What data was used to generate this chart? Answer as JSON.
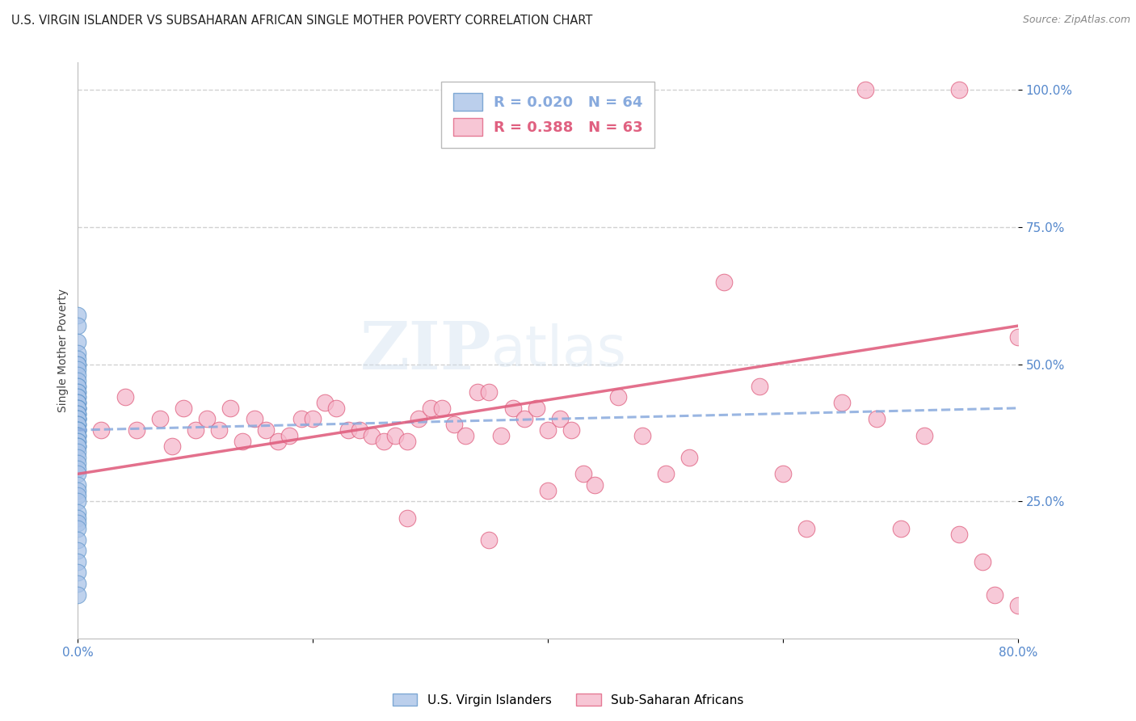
{
  "title": "U.S. VIRGIN ISLANDER VS SUBSAHARAN AFRICAN SINGLE MOTHER POVERTY CORRELATION CHART",
  "source": "Source: ZipAtlas.com",
  "ylabel": "Single Mother Poverty",
  "xlim": [
    0.0,
    0.8
  ],
  "ylim": [
    0.0,
    1.05
  ],
  "ytick_values": [
    0.25,
    0.5,
    0.75,
    1.0
  ],
  "ytick_labels": [
    "25.0%",
    "50.0%",
    "75.0%",
    "100.0%"
  ],
  "xtick_values": [
    0.0,
    0.2,
    0.4,
    0.6,
    0.8
  ],
  "xtick_labels": [
    "0.0%",
    "",
    "",
    "",
    "80.0%"
  ],
  "series1_color": "#aac4e8",
  "series1_edge": "#6699cc",
  "series2_color": "#f5b8cb",
  "series2_edge": "#e06080",
  "trendline1_color": "#88aadd",
  "trendline2_color": "#e06080",
  "watermark_top": "ZIP",
  "watermark_bot": "atlas",
  "legend_r1": "R = 0.020",
  "legend_n1": "N = 64",
  "legend_r2": "R = 0.388",
  "legend_n2": "N = 63",
  "background_color": "#ffffff",
  "grid_color": "#cccccc",
  "tick_color": "#5588cc",
  "title_fontsize": 10.5,
  "source_fontsize": 9,
  "legend_fontsize": 13,
  "axis_label_fontsize": 10,
  "series1_x": [
    0.0,
    0.0,
    0.0,
    0.0,
    0.0,
    0.0,
    0.0,
    0.0,
    0.0,
    0.0,
    0.0,
    0.0,
    0.0,
    0.0,
    0.0,
    0.0,
    0.0,
    0.0,
    0.0,
    0.0,
    0.0,
    0.0,
    0.0,
    0.0,
    0.0,
    0.0,
    0.0,
    0.0,
    0.0,
    0.0,
    0.0,
    0.0,
    0.0,
    0.0,
    0.0,
    0.0,
    0.0,
    0.0,
    0.0,
    0.0,
    0.0,
    0.0,
    0.0,
    0.0,
    0.0,
    0.0,
    0.0,
    0.0,
    0.0,
    0.0,
    0.0,
    0.0,
    0.0,
    0.0,
    0.0,
    0.0,
    0.0,
    0.0,
    0.0,
    0.0,
    0.0,
    0.0,
    0.0,
    0.0
  ],
  "series1_y": [
    0.59,
    0.57,
    0.54,
    0.52,
    0.51,
    0.5,
    0.5,
    0.49,
    0.48,
    0.47,
    0.46,
    0.46,
    0.45,
    0.45,
    0.44,
    0.44,
    0.43,
    0.43,
    0.43,
    0.42,
    0.42,
    0.42,
    0.42,
    0.41,
    0.41,
    0.41,
    0.4,
    0.4,
    0.4,
    0.4,
    0.39,
    0.39,
    0.39,
    0.38,
    0.38,
    0.38,
    0.38,
    0.37,
    0.37,
    0.37,
    0.36,
    0.36,
    0.35,
    0.35,
    0.35,
    0.34,
    0.33,
    0.32,
    0.31,
    0.3,
    0.28,
    0.27,
    0.26,
    0.25,
    0.23,
    0.22,
    0.21,
    0.2,
    0.18,
    0.16,
    0.14,
    0.12,
    0.1,
    0.08
  ],
  "series2_x": [
    0.02,
    0.04,
    0.05,
    0.07,
    0.08,
    0.09,
    0.1,
    0.11,
    0.12,
    0.13,
    0.14,
    0.15,
    0.16,
    0.17,
    0.18,
    0.19,
    0.2,
    0.21,
    0.22,
    0.23,
    0.24,
    0.25,
    0.26,
    0.27,
    0.28,
    0.29,
    0.3,
    0.31,
    0.32,
    0.33,
    0.34,
    0.35,
    0.36,
    0.37,
    0.38,
    0.39,
    0.4,
    0.41,
    0.42,
    0.43,
    0.44,
    0.46,
    0.48,
    0.5,
    0.52,
    0.55,
    0.58,
    0.6,
    0.62,
    0.65,
    0.68,
    0.7,
    0.72,
    0.75,
    0.77,
    0.78,
    0.8,
    0.67,
    0.75,
    0.8,
    0.4,
    0.28,
    0.35
  ],
  "series2_y": [
    0.38,
    0.44,
    0.38,
    0.4,
    0.35,
    0.42,
    0.38,
    0.4,
    0.38,
    0.42,
    0.36,
    0.4,
    0.38,
    0.36,
    0.37,
    0.4,
    0.4,
    0.43,
    0.42,
    0.38,
    0.38,
    0.37,
    0.36,
    0.37,
    0.36,
    0.4,
    0.42,
    0.42,
    0.39,
    0.37,
    0.45,
    0.45,
    0.37,
    0.42,
    0.4,
    0.42,
    0.38,
    0.4,
    0.38,
    0.3,
    0.28,
    0.44,
    0.37,
    0.3,
    0.33,
    0.65,
    0.46,
    0.3,
    0.2,
    0.43,
    0.4,
    0.2,
    0.37,
    0.19,
    0.14,
    0.08,
    0.06,
    1.0,
    1.0,
    0.55,
    0.27,
    0.22,
    0.18
  ],
  "trendline1_x": [
    0.0,
    0.8
  ],
  "trendline1_y": [
    0.38,
    0.42
  ],
  "trendline2_x": [
    0.0,
    0.8
  ],
  "trendline2_y": [
    0.3,
    0.57
  ]
}
